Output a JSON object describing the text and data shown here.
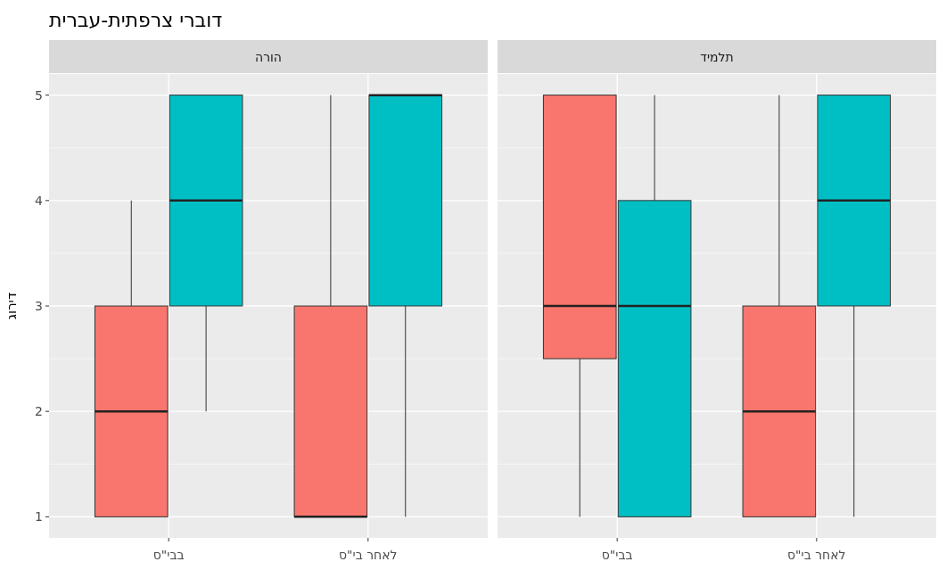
{
  "chart_data": [
    {
      "type": "box",
      "title": "דוברי צרפתית-עברית",
      "subtitle": "הורה",
      "ylabel": "דירוג",
      "categories": [
        "בבי\"ס",
        "לאחר בי\"ס"
      ],
      "series": [
        {
          "color": "#f8766d",
          "boxes": [
            {
              "low": 1,
              "q1": 1,
              "median": 2,
              "q3": 3,
              "high": 4
            },
            {
              "low": 1,
              "q1": 1,
              "median": 1,
              "q3": 3,
              "high": 5
            }
          ]
        },
        {
          "color": "#00bfc4",
          "boxes": [
            {
              "low": 2,
              "q1": 3,
              "median": 4,
              "q3": 5,
              "high": 5
            },
            {
              "low": 1,
              "q1": 3,
              "median": 5,
              "q3": 5,
              "high": 5
            }
          ]
        }
      ],
      "ylim": [
        0.8,
        5.2
      ],
      "yticks": [
        1,
        2,
        3,
        4,
        5
      ],
      "grid": true
    },
    {
      "type": "box",
      "subtitle": "תלמיד",
      "categories": [
        "בבי\"ס",
        "לאחר בי\"ס"
      ],
      "series": [
        {
          "color": "#f8766d",
          "boxes": [
            {
              "low": 1,
              "q1": 2.5,
              "median": 3,
              "q3": 5,
              "high": 5
            },
            {
              "low": 1,
              "q1": 1,
              "median": 2,
              "q3": 3,
              "high": 5
            }
          ]
        },
        {
          "color": "#00bfc4",
          "boxes": [
            {
              "low": 1,
              "q1": 1,
              "median": 3,
              "q3": 4,
              "high": 5
            },
            {
              "low": 1,
              "q1": 3,
              "median": 4,
              "q3": 5,
              "high": 5
            }
          ]
        }
      ],
      "ylim": [
        0.8,
        5.2
      ],
      "yticks": [
        1,
        2,
        3,
        4,
        5
      ],
      "grid": true,
      "tick_labels": "x"
    }
  ]
}
